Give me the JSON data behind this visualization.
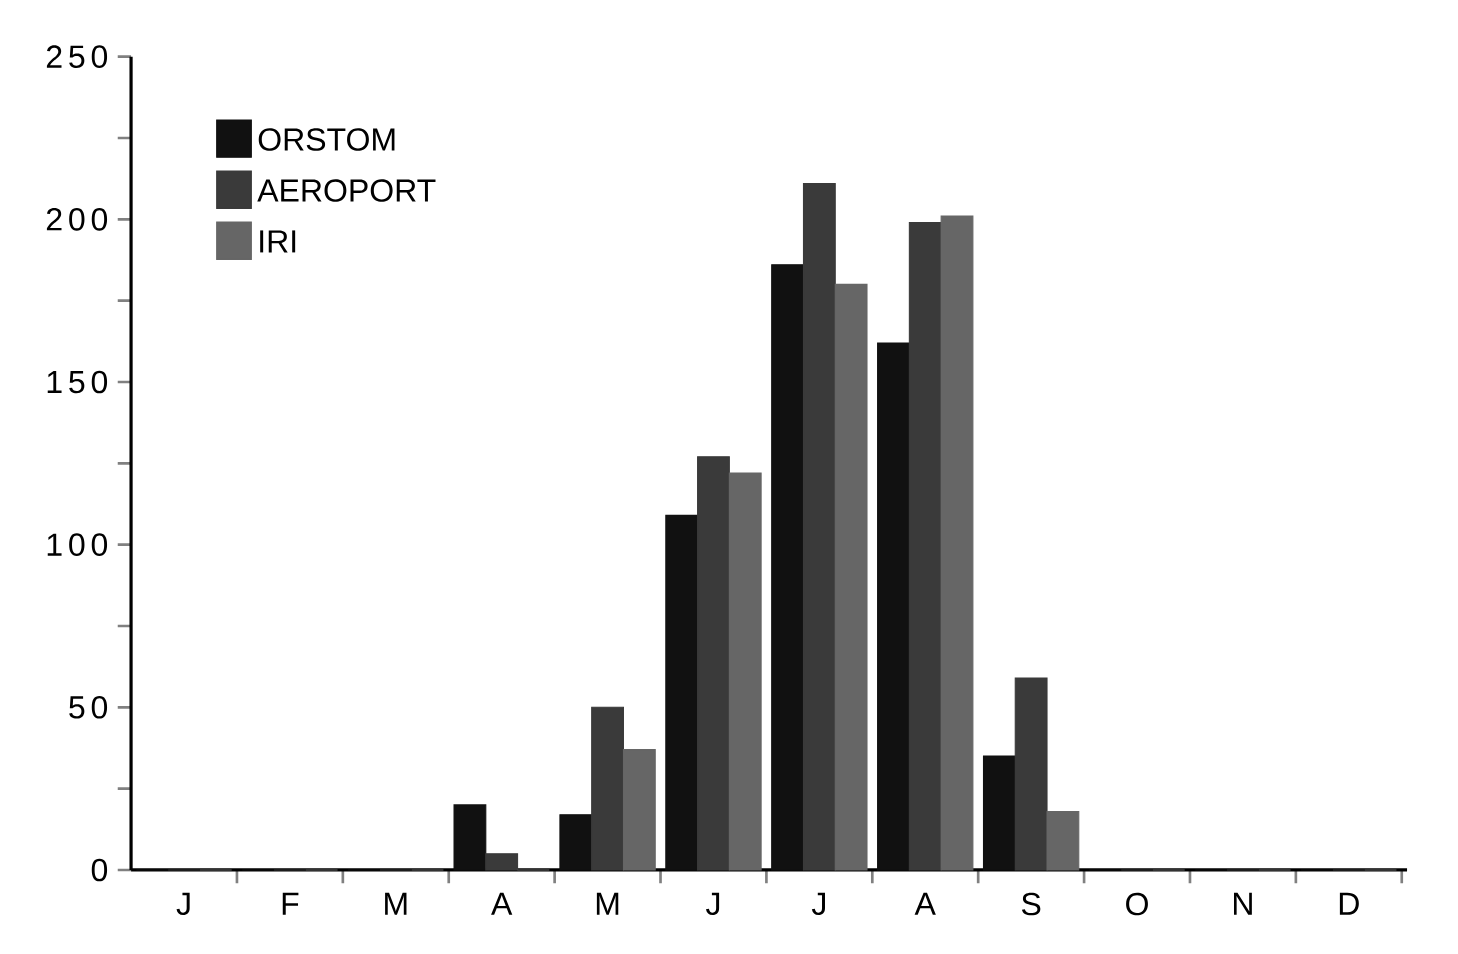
{
  "chart_data": {
    "type": "bar",
    "categories": [
      "J",
      "F",
      "M",
      "A",
      "M",
      "J",
      "J",
      "A",
      "S",
      "O",
      "N",
      "D"
    ],
    "series": [
      {
        "name": "ORSTOM",
        "color": "#111111",
        "values": [
          0,
          0,
          0,
          20,
          17,
          109,
          186,
          162,
          35,
          0,
          0,
          0
        ]
      },
      {
        "name": "AEROPORT",
        "color": "#3a3a3a",
        "values": [
          0,
          0,
          0,
          5,
          50,
          127,
          211,
          199,
          59,
          0,
          0,
          0
        ]
      },
      {
        "name": "IRI",
        "color": "#666666",
        "values": [
          0,
          0,
          0,
          0,
          37,
          122,
          180,
          201,
          18,
          0,
          0,
          0
        ]
      }
    ],
    "ylim": [
      0,
      250
    ],
    "yticks": [
      0,
      {
        "value": 25,
        "label": null
      },
      50,
      {
        "value": 75,
        "label": null
      },
      100,
      {
        "value": 125,
        "label": null
      },
      150,
      {
        "value": 175,
        "label": null
      },
      200,
      {
        "value": 225,
        "label": null
      },
      250
    ],
    "grid": false,
    "legend": "top left"
  }
}
